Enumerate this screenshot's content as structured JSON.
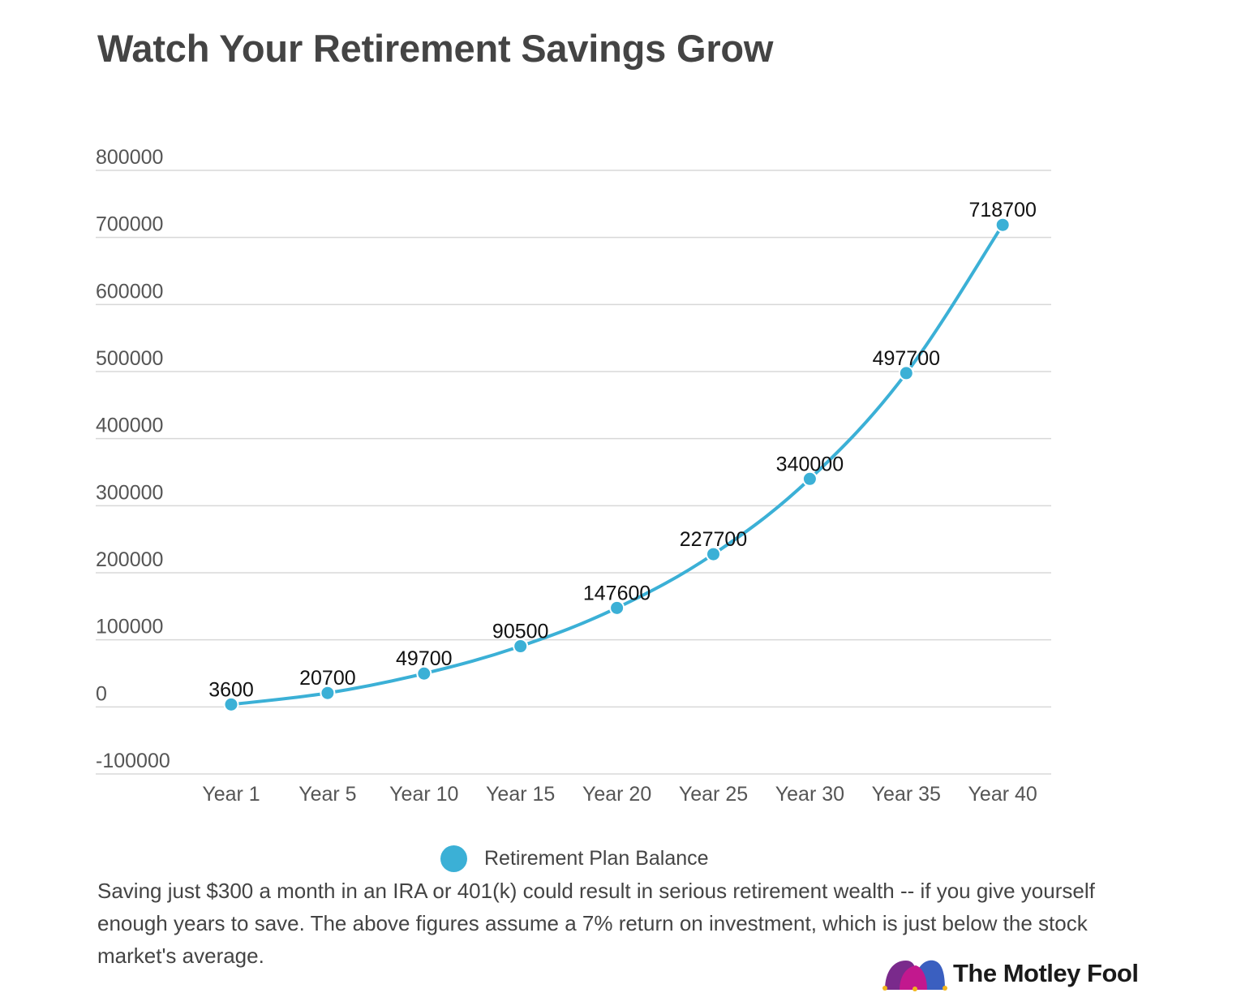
{
  "title": "Watch Your Retirement Savings Grow",
  "caption": "Saving just $300 a month in an IRA or 401(k) could result in serious retirement wealth -- if you give yourself enough years to save. The above figures assume a 7% return on investment, which is just below the stock market's average.",
  "logo": {
    "text": "The Motley Fool"
  },
  "colors": {
    "series": "#3bb0d6",
    "grid": "#d8d8d8",
    "text": "#444444"
  },
  "chart_data": {
    "type": "line",
    "title": "Watch Your Retirement Savings Grow",
    "xlabel": "",
    "ylabel": "",
    "categories": [
      "Year 1",
      "Year 5",
      "Year 10",
      "Year 15",
      "Year 20",
      "Year 25",
      "Year 30",
      "Year 35",
      "Year 40"
    ],
    "series": [
      {
        "name": "Retirement Plan Balance",
        "values": [
          3600,
          20700,
          49700,
          90500,
          147600,
          227700,
          340000,
          497700,
          718700
        ]
      }
    ],
    "ylim": [
      -100000,
      800000
    ],
    "yticks": [
      "800000",
      "700000",
      "600000",
      "500000",
      "400000",
      "300000",
      "200000",
      "100000",
      "0",
      "-100000"
    ],
    "grid": true,
    "legend": "bottom-center",
    "data_labels": true,
    "smooth": true
  }
}
